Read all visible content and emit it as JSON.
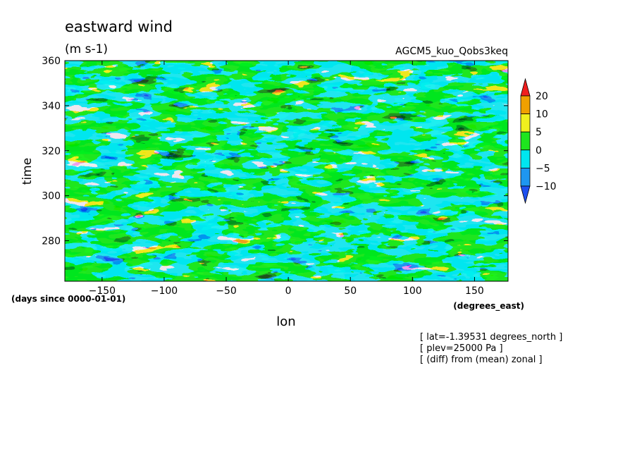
{
  "chart_data": {
    "type": "heatmap",
    "title": "eastward wind",
    "subtitle": "(m s-1)",
    "run_label": "AGCM5_kuo_Qobs3keq",
    "xlabel": "lon",
    "xunits": "(degrees_east)",
    "ylabel": "time",
    "yunits": "(days since 0000-01-01)",
    "xlim": [
      -180,
      177
    ],
    "ylim": [
      262,
      360
    ],
    "xticks": [
      -150,
      -100,
      -50,
      0,
      50,
      100,
      150
    ],
    "yticks": [
      280,
      300,
      320,
      340,
      360
    ],
    "colorbar": {
      "levels": [
        -10,
        -5,
        0,
        5,
        10,
        20
      ],
      "colors": [
        "#1e50f0",
        "#1e96f0",
        "#00e6f0",
        "#1ee61e",
        "#f0f01e",
        "#f0a000",
        "#f01e1e"
      ]
    },
    "annotations": [
      "[ lat=-1.39531 degrees_north ]",
      "[ plev=25000 Pa ]",
      "[ (diff) from (mean) zonal ]"
    ]
  }
}
